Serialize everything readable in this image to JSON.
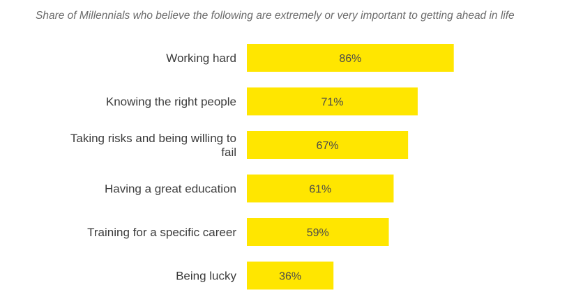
{
  "subtitle": "Share of Millennials who believe the following are extremely or very important to getting ahead in life",
  "chart_data": {
    "type": "bar",
    "orientation": "horizontal",
    "title": "",
    "xlabel": "",
    "ylabel": "",
    "categories": [
      [
        "Working hard"
      ],
      [
        "Knowing the right people"
      ],
      [
        "Taking risks and being willing to",
        "fail"
      ],
      [
        "Having a great education"
      ],
      [
        "Training for a specific career"
      ],
      [
        "Being lucky"
      ]
    ],
    "values": [
      86,
      71,
      67,
      61,
      59,
      36
    ],
    "value_labels": [
      "86%",
      "71%",
      "67%",
      "61%",
      "59%",
      "36%"
    ],
    "xlim": [
      0,
      100
    ],
    "grid": false,
    "bar_color": "#FFE600"
  }
}
